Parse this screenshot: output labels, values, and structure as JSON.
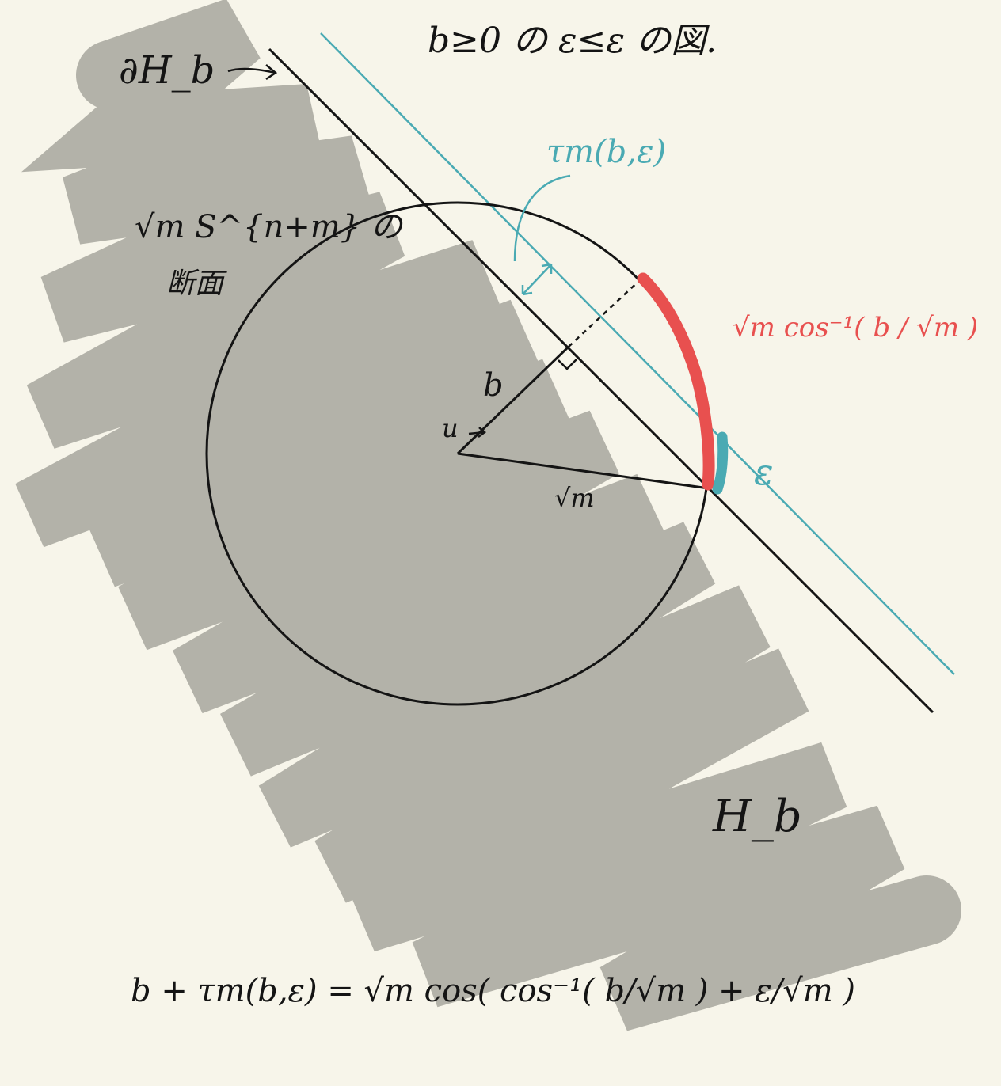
{
  "title": "b≥0 の ε≤ε の図.",
  "boundary_label": "∂H_b",
  "halfspace_label": "H_b",
  "sphere_label_line1": "√m S^{n+m} の",
  "sphere_label_line2": "断面",
  "tau_label": "τm(b,ε)",
  "b_label": "b",
  "u_label": "u",
  "radius_label": "√m",
  "epsilon_label": "ε",
  "arc_length_label": "√m cos⁻¹( b / √m )",
  "formula": "b + τm(b,ε) = √m cos( cos⁻¹( b/√m ) + ε/√m )",
  "colors": {
    "background": "#f7f5ea",
    "shading": "#b3b2a9",
    "ink": "#141414",
    "teal": "#4aaab3",
    "red": "#e8504f"
  }
}
